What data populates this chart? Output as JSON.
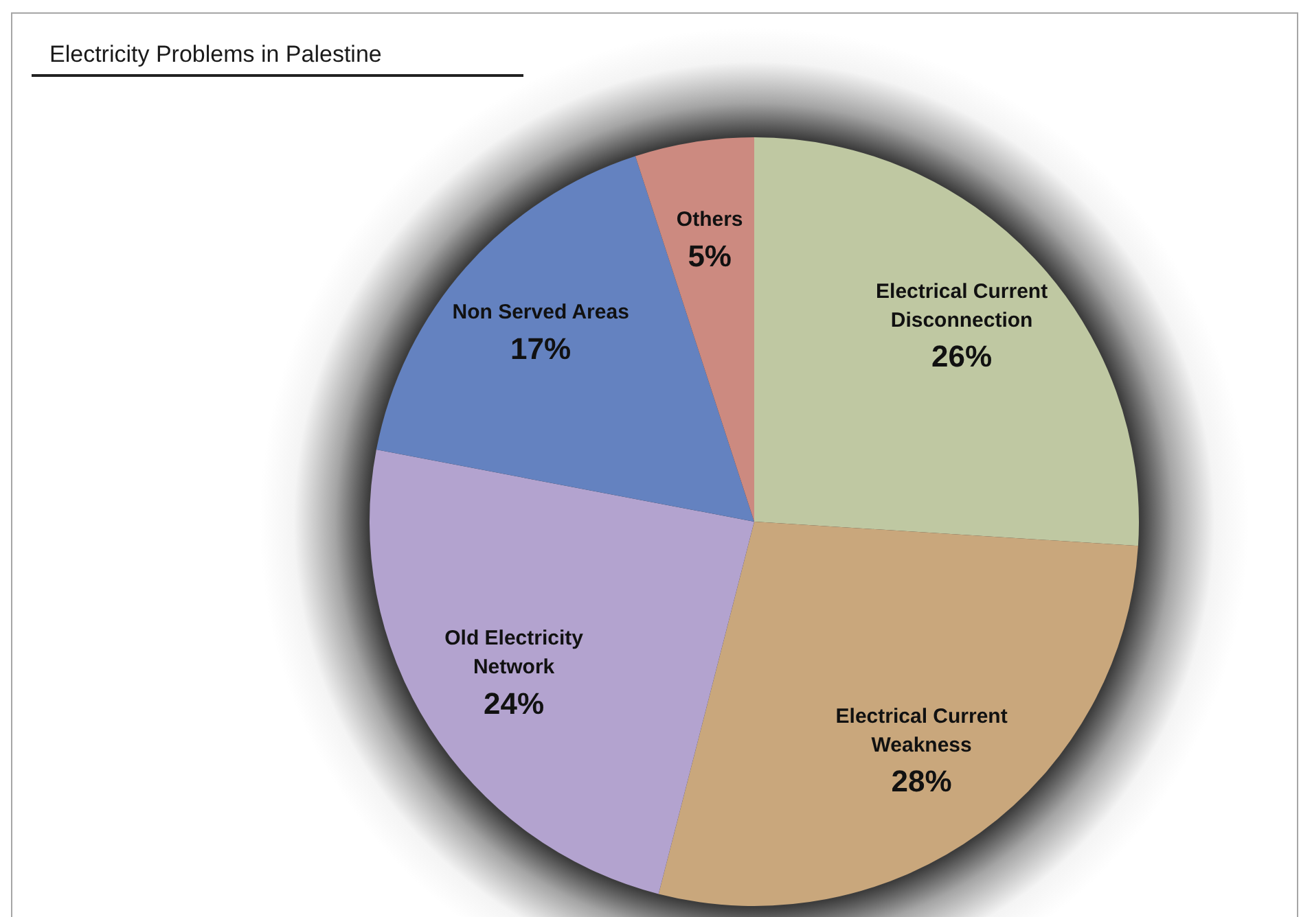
{
  "chart_data": {
    "type": "pie",
    "title": "Electricity Problems in Palestine",
    "categories": [
      "Electrical Current Disconnection",
      "Electrical Current Weakness",
      "Old Electricity Network",
      "Non Served Areas",
      "Others"
    ],
    "values": [
      26,
      28,
      24,
      17,
      5
    ],
    "value_labels": [
      "26%",
      "28%",
      "24%",
      "17%",
      "5%"
    ],
    "colors": [
      "#bfc8a2",
      "#c9a77c",
      "#b3a3cf",
      "#6482c0",
      "#cc8a80"
    ]
  }
}
